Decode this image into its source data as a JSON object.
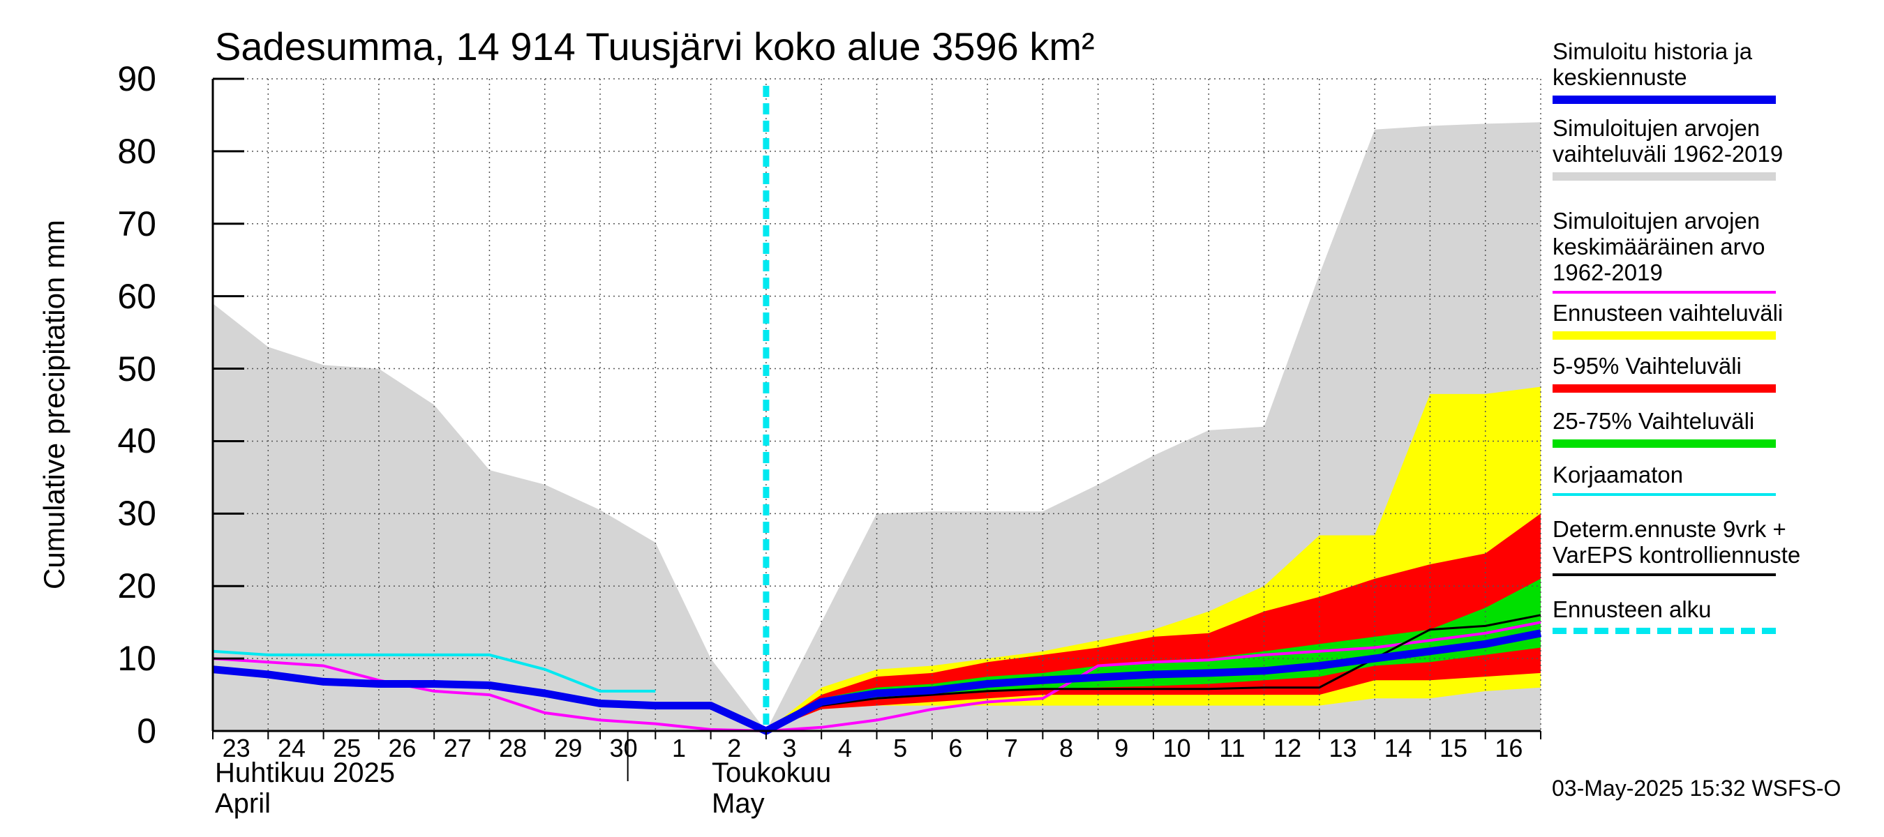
{
  "chart_data": {
    "type": "area",
    "title": "Sadesumma, 14 914 Tuusjärvi koko alue 3596 km²",
    "ylabel": "Cumulative precipitation   mm",
    "ylim": [
      0,
      90
    ],
    "yticks": [
      0,
      10,
      20,
      30,
      40,
      50,
      60,
      70,
      80,
      90
    ],
    "grid": true,
    "legend_position": "right",
    "x_days": [
      "2025-04-23",
      "2025-04-24",
      "2025-04-25",
      "2025-04-26",
      "2025-04-27",
      "2025-04-28",
      "2025-04-29",
      "2025-04-30",
      "2025-05-01",
      "2025-05-02",
      "2025-05-03",
      "2025-05-04",
      "2025-05-05",
      "2025-05-06",
      "2025-05-07",
      "2025-05-08",
      "2025-05-09",
      "2025-05-10",
      "2025-05-11",
      "2025-05-12",
      "2025-05-13",
      "2025-05-14",
      "2025-05-15",
      "2025-05-16",
      "2025-05-17"
    ],
    "x_tick_labels": [
      "23",
      "24",
      "25",
      "26",
      "27",
      "28",
      "29",
      "30",
      "1",
      "2",
      "3",
      "4",
      "5",
      "6",
      "7",
      "8",
      "9",
      "10",
      "11",
      "12",
      "13",
      "14",
      "15",
      "16"
    ],
    "month_labels": [
      {
        "fi": "Huhtikuu  2025",
        "en": "April"
      },
      {
        "fi": "Toukokuu",
        "en": "May"
      }
    ],
    "forecast_start": "2025-05-03",
    "series": [
      {
        "name": "Simuloitujen arvojen vaihteluväli 1962-2019",
        "kind": "band",
        "color": "#d5d5d5",
        "points": [
          [
            "2025-04-23",
            0,
            59
          ],
          [
            "2025-04-24",
            0,
            53
          ],
          [
            "2025-04-25",
            0,
            50.5
          ],
          [
            "2025-04-26",
            0,
            50
          ],
          [
            "2025-04-27",
            0,
            45
          ],
          [
            "2025-04-28",
            0,
            36
          ],
          [
            "2025-04-29",
            0,
            34
          ],
          [
            "2025-04-30",
            0,
            30.5
          ],
          [
            "2025-05-01",
            0,
            26
          ],
          [
            "2025-05-02",
            0,
            10
          ],
          [
            "2025-05-03",
            0,
            0
          ],
          [
            "2025-05-04",
            0,
            15
          ],
          [
            "2025-05-05",
            0,
            30
          ],
          [
            "2025-05-06",
            0,
            30.3
          ],
          [
            "2025-05-07",
            0,
            30.3
          ],
          [
            "2025-05-08",
            0,
            30.3
          ],
          [
            "2025-05-09",
            0,
            34
          ],
          [
            "2025-05-10",
            0,
            38
          ],
          [
            "2025-05-11",
            0,
            41.5
          ],
          [
            "2025-05-12",
            0,
            42
          ],
          [
            "2025-05-13",
            0,
            63
          ],
          [
            "2025-05-14",
            0,
            83
          ],
          [
            "2025-05-15",
            0,
            83.5
          ],
          [
            "2025-05-16",
            0,
            83.8
          ],
          [
            "2025-05-17",
            0,
            84
          ]
        ]
      },
      {
        "name": "Ennusteen vaihteluväli",
        "kind": "band",
        "color": "#ffff00",
        "points": [
          [
            "2025-05-03",
            0,
            0
          ],
          [
            "2025-05-04",
            3,
            6
          ],
          [
            "2025-05-05",
            3.5,
            8.5
          ],
          [
            "2025-05-06",
            3.5,
            9
          ],
          [
            "2025-05-07",
            3.5,
            10
          ],
          [
            "2025-05-08",
            3.5,
            11
          ],
          [
            "2025-05-09",
            3.5,
            12.5
          ],
          [
            "2025-05-10",
            3.5,
            14
          ],
          [
            "2025-05-11",
            3.5,
            16.5
          ],
          [
            "2025-05-12",
            3.5,
            20
          ],
          [
            "2025-05-13",
            3.5,
            27
          ],
          [
            "2025-05-14",
            4.5,
            27
          ],
          [
            "2025-05-15",
            4.5,
            46.5
          ],
          [
            "2025-05-16",
            5.5,
            46.5
          ],
          [
            "2025-05-17",
            6,
            47.5
          ]
        ]
      },
      {
        "name": "5-95% Vaihteluväli",
        "kind": "band",
        "color": "#ff0000",
        "points": [
          [
            "2025-05-03",
            0,
            0
          ],
          [
            "2025-05-04",
            3,
            5
          ],
          [
            "2025-05-05",
            3.5,
            7.5
          ],
          [
            "2025-05-06",
            4,
            8
          ],
          [
            "2025-05-07",
            4.5,
            9.5
          ],
          [
            "2025-05-08",
            5,
            10.5
          ],
          [
            "2025-05-09",
            5,
            11.5
          ],
          [
            "2025-05-10",
            5,
            13
          ],
          [
            "2025-05-11",
            5,
            13.5
          ],
          [
            "2025-05-12",
            5,
            16.5
          ],
          [
            "2025-05-13",
            5,
            18.5
          ],
          [
            "2025-05-14",
            7,
            21
          ],
          [
            "2025-05-15",
            7,
            23
          ],
          [
            "2025-05-16",
            7.5,
            24.5
          ],
          [
            "2025-05-17",
            8,
            30
          ]
        ]
      },
      {
        "name": "25-75% Vaihteluväli",
        "kind": "band",
        "color": "#00e000",
        "points": [
          [
            "2025-05-03",
            0,
            0
          ],
          [
            "2025-05-04",
            3.5,
            4.5
          ],
          [
            "2025-05-05",
            4.5,
            6
          ],
          [
            "2025-05-06",
            5,
            6.5
          ],
          [
            "2025-05-07",
            5.5,
            7.5
          ],
          [
            "2025-05-08",
            5.8,
            8
          ],
          [
            "2025-05-09",
            6,
            9
          ],
          [
            "2025-05-10",
            6.2,
            9.5
          ],
          [
            "2025-05-11",
            6.5,
            10
          ],
          [
            "2025-05-12",
            7,
            11
          ],
          [
            "2025-05-13",
            7.5,
            12
          ],
          [
            "2025-05-14",
            9,
            13
          ],
          [
            "2025-05-15",
            9.5,
            14
          ],
          [
            "2025-05-16",
            10.5,
            17
          ],
          [
            "2025-05-17",
            11.5,
            21
          ]
        ]
      },
      {
        "name": "Korjaamaton",
        "kind": "line",
        "color": "#00e8f0",
        "points": [
          [
            "2025-04-23",
            11
          ],
          [
            "2025-04-24",
            10.5
          ],
          [
            "2025-04-25",
            10.5
          ],
          [
            "2025-04-26",
            10.5
          ],
          [
            "2025-04-27",
            10.5
          ],
          [
            "2025-04-28",
            10.5
          ],
          [
            "2025-04-29",
            8.5
          ],
          [
            "2025-04-30",
            5.5
          ],
          [
            "2025-05-01",
            5.5
          ]
        ]
      },
      {
        "name": "Simuloitujen arvojen keskimääräinen arvo 1962-2019",
        "kind": "line",
        "color": "#ff00ff",
        "points": [
          [
            "2025-04-23",
            10
          ],
          [
            "2025-04-24",
            9.5
          ],
          [
            "2025-04-25",
            9
          ],
          [
            "2025-04-26",
            7
          ],
          [
            "2025-04-27",
            5.5
          ],
          [
            "2025-04-28",
            5
          ],
          [
            "2025-04-29",
            2.5
          ],
          [
            "2025-04-30",
            1.5
          ],
          [
            "2025-05-01",
            1
          ],
          [
            "2025-05-02",
            0.2
          ],
          [
            "2025-05-03",
            0
          ],
          [
            "2025-05-04",
            0.5
          ],
          [
            "2025-05-05",
            1.5
          ],
          [
            "2025-05-06",
            3
          ],
          [
            "2025-05-07",
            4
          ],
          [
            "2025-05-08",
            4.5
          ],
          [
            "2025-05-09",
            9
          ],
          [
            "2025-05-10",
            9.5
          ],
          [
            "2025-05-11",
            9.8
          ],
          [
            "2025-05-12",
            10.5
          ],
          [
            "2025-05-13",
            11
          ],
          [
            "2025-05-14",
            11.5
          ],
          [
            "2025-05-15",
            12.5
          ],
          [
            "2025-05-16",
            13.5
          ],
          [
            "2025-05-17",
            15
          ]
        ]
      },
      {
        "name": "Determ.ennuste 9vrk + VarEPS kontrolliennuste",
        "kind": "line",
        "color": "#000000",
        "points": [
          [
            "2025-05-03",
            0
          ],
          [
            "2025-05-04",
            3.5
          ],
          [
            "2025-05-05",
            4.5
          ],
          [
            "2025-05-06",
            5
          ],
          [
            "2025-05-07",
            5.5
          ],
          [
            "2025-05-08",
            5.8
          ],
          [
            "2025-05-09",
            5.8
          ],
          [
            "2025-05-10",
            5.8
          ],
          [
            "2025-05-11",
            5.8
          ],
          [
            "2025-05-12",
            6
          ],
          [
            "2025-05-13",
            6
          ],
          [
            "2025-05-14",
            10
          ],
          [
            "2025-05-15",
            14
          ],
          [
            "2025-05-16",
            14.5
          ],
          [
            "2025-05-17",
            16
          ]
        ]
      },
      {
        "name": "Simuloitu historia ja keskiennuste",
        "kind": "line",
        "color": "#0000ee",
        "points": [
          [
            "2025-04-23",
            8.5
          ],
          [
            "2025-04-24",
            7.8
          ],
          [
            "2025-04-25",
            6.8
          ],
          [
            "2025-04-26",
            6.5
          ],
          [
            "2025-04-27",
            6.5
          ],
          [
            "2025-04-28",
            6.3
          ],
          [
            "2025-04-29",
            5.2
          ],
          [
            "2025-04-30",
            3.8
          ],
          [
            "2025-05-01",
            3.5
          ],
          [
            "2025-05-02",
            3.5
          ],
          [
            "2025-05-03",
            0
          ],
          [
            "2025-05-04",
            4
          ],
          [
            "2025-05-05",
            5.2
          ],
          [
            "2025-05-06",
            5.6
          ],
          [
            "2025-05-07",
            6.5
          ],
          [
            "2025-05-08",
            7
          ],
          [
            "2025-05-09",
            7.4
          ],
          [
            "2025-05-10",
            7.8
          ],
          [
            "2025-05-11",
            8
          ],
          [
            "2025-05-12",
            8.3
          ],
          [
            "2025-05-13",
            9
          ],
          [
            "2025-05-14",
            10
          ],
          [
            "2025-05-15",
            11
          ],
          [
            "2025-05-16",
            12
          ],
          [
            "2025-05-17",
            13.5
          ]
        ]
      }
    ],
    "legend": [
      {
        "label": "Simuloitu historia ja\nkeskiennuste",
        "color": "#0000ee",
        "style": "thick"
      },
      {
        "label": "Simuloitujen arvojen\nvaihteluväli 1962-2019",
        "color": "#d5d5d5",
        "style": "thick"
      },
      {
        "label": "Simuloitujen arvojen\nkeskimääräinen arvo\n   1962-2019",
        "color": "#ff00ff",
        "style": "thin"
      },
      {
        "label": "Ennusteen vaihteluväli",
        "color": "#ffff00",
        "style": "thick"
      },
      {
        "label": "5-95% Vaihteluväli",
        "color": "#ff0000",
        "style": "thick"
      },
      {
        "label": "25-75% Vaihteluväli",
        "color": "#00e000",
        "style": "thick"
      },
      {
        "label": "Korjaamaton",
        "color": "#00e8f0",
        "style": "thin"
      },
      {
        "label": "Determ.ennuste 9vrk +\nVarEPS kontrolliennuste",
        "color": "#000000",
        "style": "thin"
      },
      {
        "label": "Ennusteen alku",
        "color": "#00e8f0",
        "style": "dashed"
      }
    ]
  },
  "footer": {
    "timestamp": "03-May-2025 15:32 WSFS-O"
  }
}
